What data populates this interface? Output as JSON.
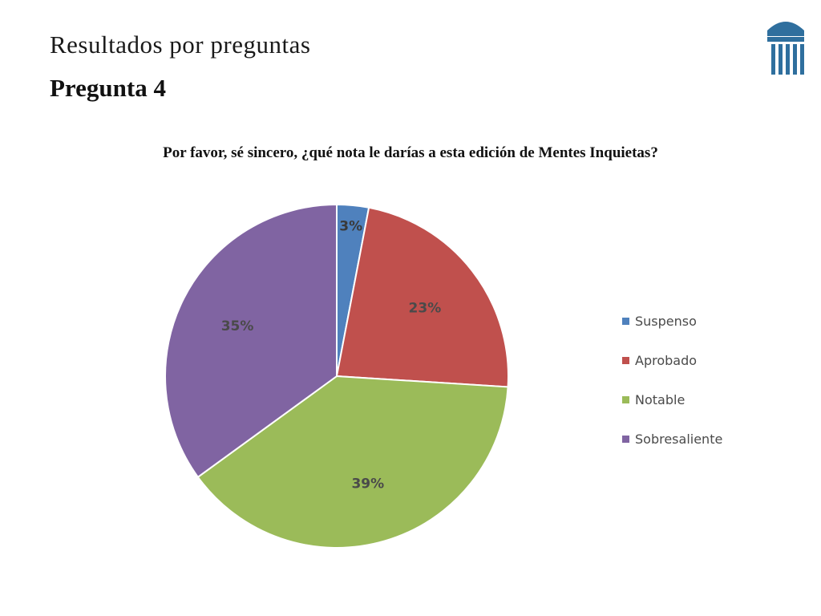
{
  "slide": {
    "heading": "Resultados por preguntas",
    "subheading": "Pregunta 4"
  },
  "chart_data": {
    "type": "pie",
    "title": "Por favor, sé sincero, ¿qué nota le darías a esta edición de Mentes Inquietas?",
    "categories": [
      "Suspenso",
      "Aprobado",
      "Notable",
      "Sobresaliente"
    ],
    "values": [
      3,
      23,
      39,
      35
    ],
    "labels": [
      "3%",
      "23%",
      "39%",
      "35%"
    ],
    "colors": [
      "#4f81bd",
      "#c0504d",
      "#9bbb59",
      "#8064a2"
    ],
    "legend_position": "right"
  }
}
